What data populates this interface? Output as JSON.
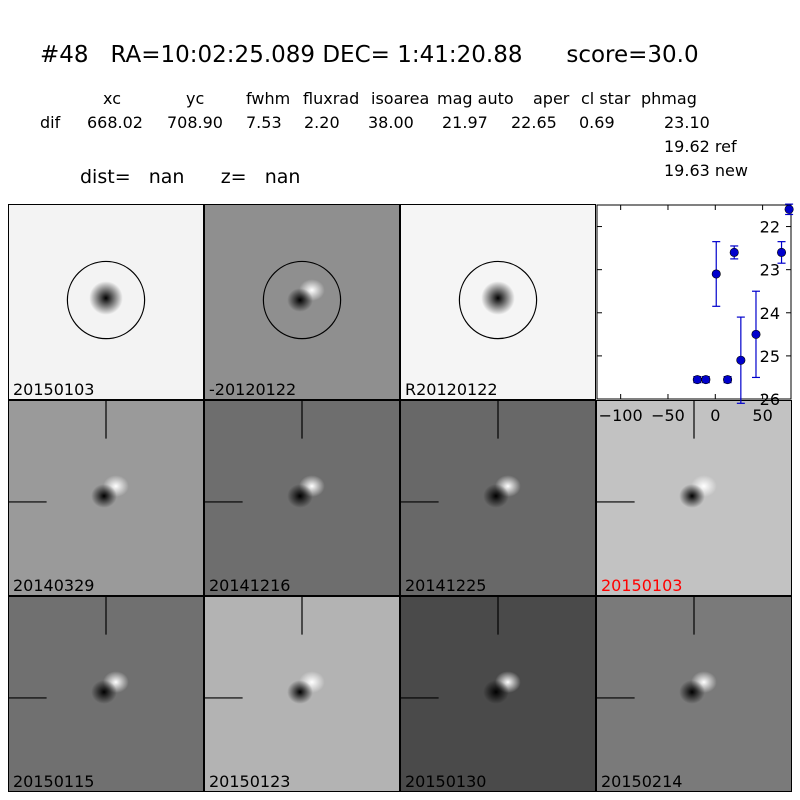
{
  "header": {
    "title": "#48   RA=10:02:25.089 DEC= 1:41:20.88      score=30.0",
    "columns": [
      "xc",
      "yc",
      "fwhm",
      "fluxrad",
      "isoarea",
      "mag auto",
      "aper",
      "cl star",
      "phmag"
    ],
    "row_label": "dif",
    "row_values": [
      "668.02",
      "708.90",
      "7.53",
      "2.20",
      "38.00",
      "21.97",
      "22.65",
      "0.69",
      "23.10"
    ],
    "phmag_ref": "19.62 ref",
    "phmag_new": "19.63 new",
    "dist_line": "dist=   nan      z=   nan"
  },
  "stamps": [
    {
      "label": "20150103",
      "bg": "#f3f3f3",
      "dipole": false,
      "circle": true,
      "crosshair": false,
      "label_color": "#000000"
    },
    {
      "label": "-20120122",
      "bg": "#8f8f8f",
      "dipole": true,
      "circle": true,
      "crosshair": false,
      "label_color": "#000000"
    },
    {
      "label": "R20120122",
      "bg": "#f5f5f5",
      "dipole": false,
      "circle": true,
      "crosshair": false,
      "label_color": "#000000"
    },
    {
      "label": "20140329",
      "bg": "#9a9a9a",
      "dipole": true,
      "circle": false,
      "crosshair": true,
      "label_color": "#000000"
    },
    {
      "label": "20141216",
      "bg": "#6e6e6e",
      "dipole": true,
      "circle": false,
      "crosshair": true,
      "label_color": "#000000"
    },
    {
      "label": "20141225",
      "bg": "#686868",
      "dipole": true,
      "circle": false,
      "crosshair": true,
      "label_color": "#000000"
    },
    {
      "label": "20150103",
      "bg": "#c2c2c2",
      "dipole": true,
      "circle": false,
      "crosshair": true,
      "label_color": "#ff0000"
    },
    {
      "label": "20150115",
      "bg": "#707070",
      "dipole": true,
      "circle": false,
      "crosshair": true,
      "label_color": "#000000"
    },
    {
      "label": "20150123",
      "bg": "#b3b3b3",
      "dipole": true,
      "circle": false,
      "crosshair": true,
      "label_color": "#000000"
    },
    {
      "label": "20150130",
      "bg": "#4a4a4a",
      "dipole": true,
      "circle": false,
      "crosshair": true,
      "label_color": "#000000"
    },
    {
      "label": "20150214",
      "bg": "#7a7a7a",
      "dipole": true,
      "circle": false,
      "crosshair": true,
      "label_color": "#000000"
    }
  ],
  "chart_data": {
    "type": "scatter",
    "title": "",
    "xlabel": "",
    "ylabel": "",
    "xlim": [
      -125,
      80
    ],
    "ylim": [
      26,
      21.5
    ],
    "y_inverted": true,
    "xticks": [
      -100,
      -50,
      0,
      50
    ],
    "yticks": [
      22,
      23,
      24,
      25,
      26
    ],
    "color": "#0000cc",
    "points": [
      {
        "x": -19,
        "y": 25.55,
        "err": 0.07
      },
      {
        "x": -10,
        "y": 25.55,
        "err": 0.07
      },
      {
        "x": 1,
        "y": 23.1,
        "err": 0.75
      },
      {
        "x": 13,
        "y": 25.55,
        "err": 0.07
      },
      {
        "x": 20,
        "y": 22.6,
        "err": 0.15
      },
      {
        "x": 27,
        "y": 25.1,
        "err": 1.0
      },
      {
        "x": 43,
        "y": 24.5,
        "err": 1.0
      },
      {
        "x": 70,
        "y": 22.6,
        "err": 0.25
      },
      {
        "x": 78,
        "y": 21.6,
        "err": 0.12
      }
    ]
  }
}
